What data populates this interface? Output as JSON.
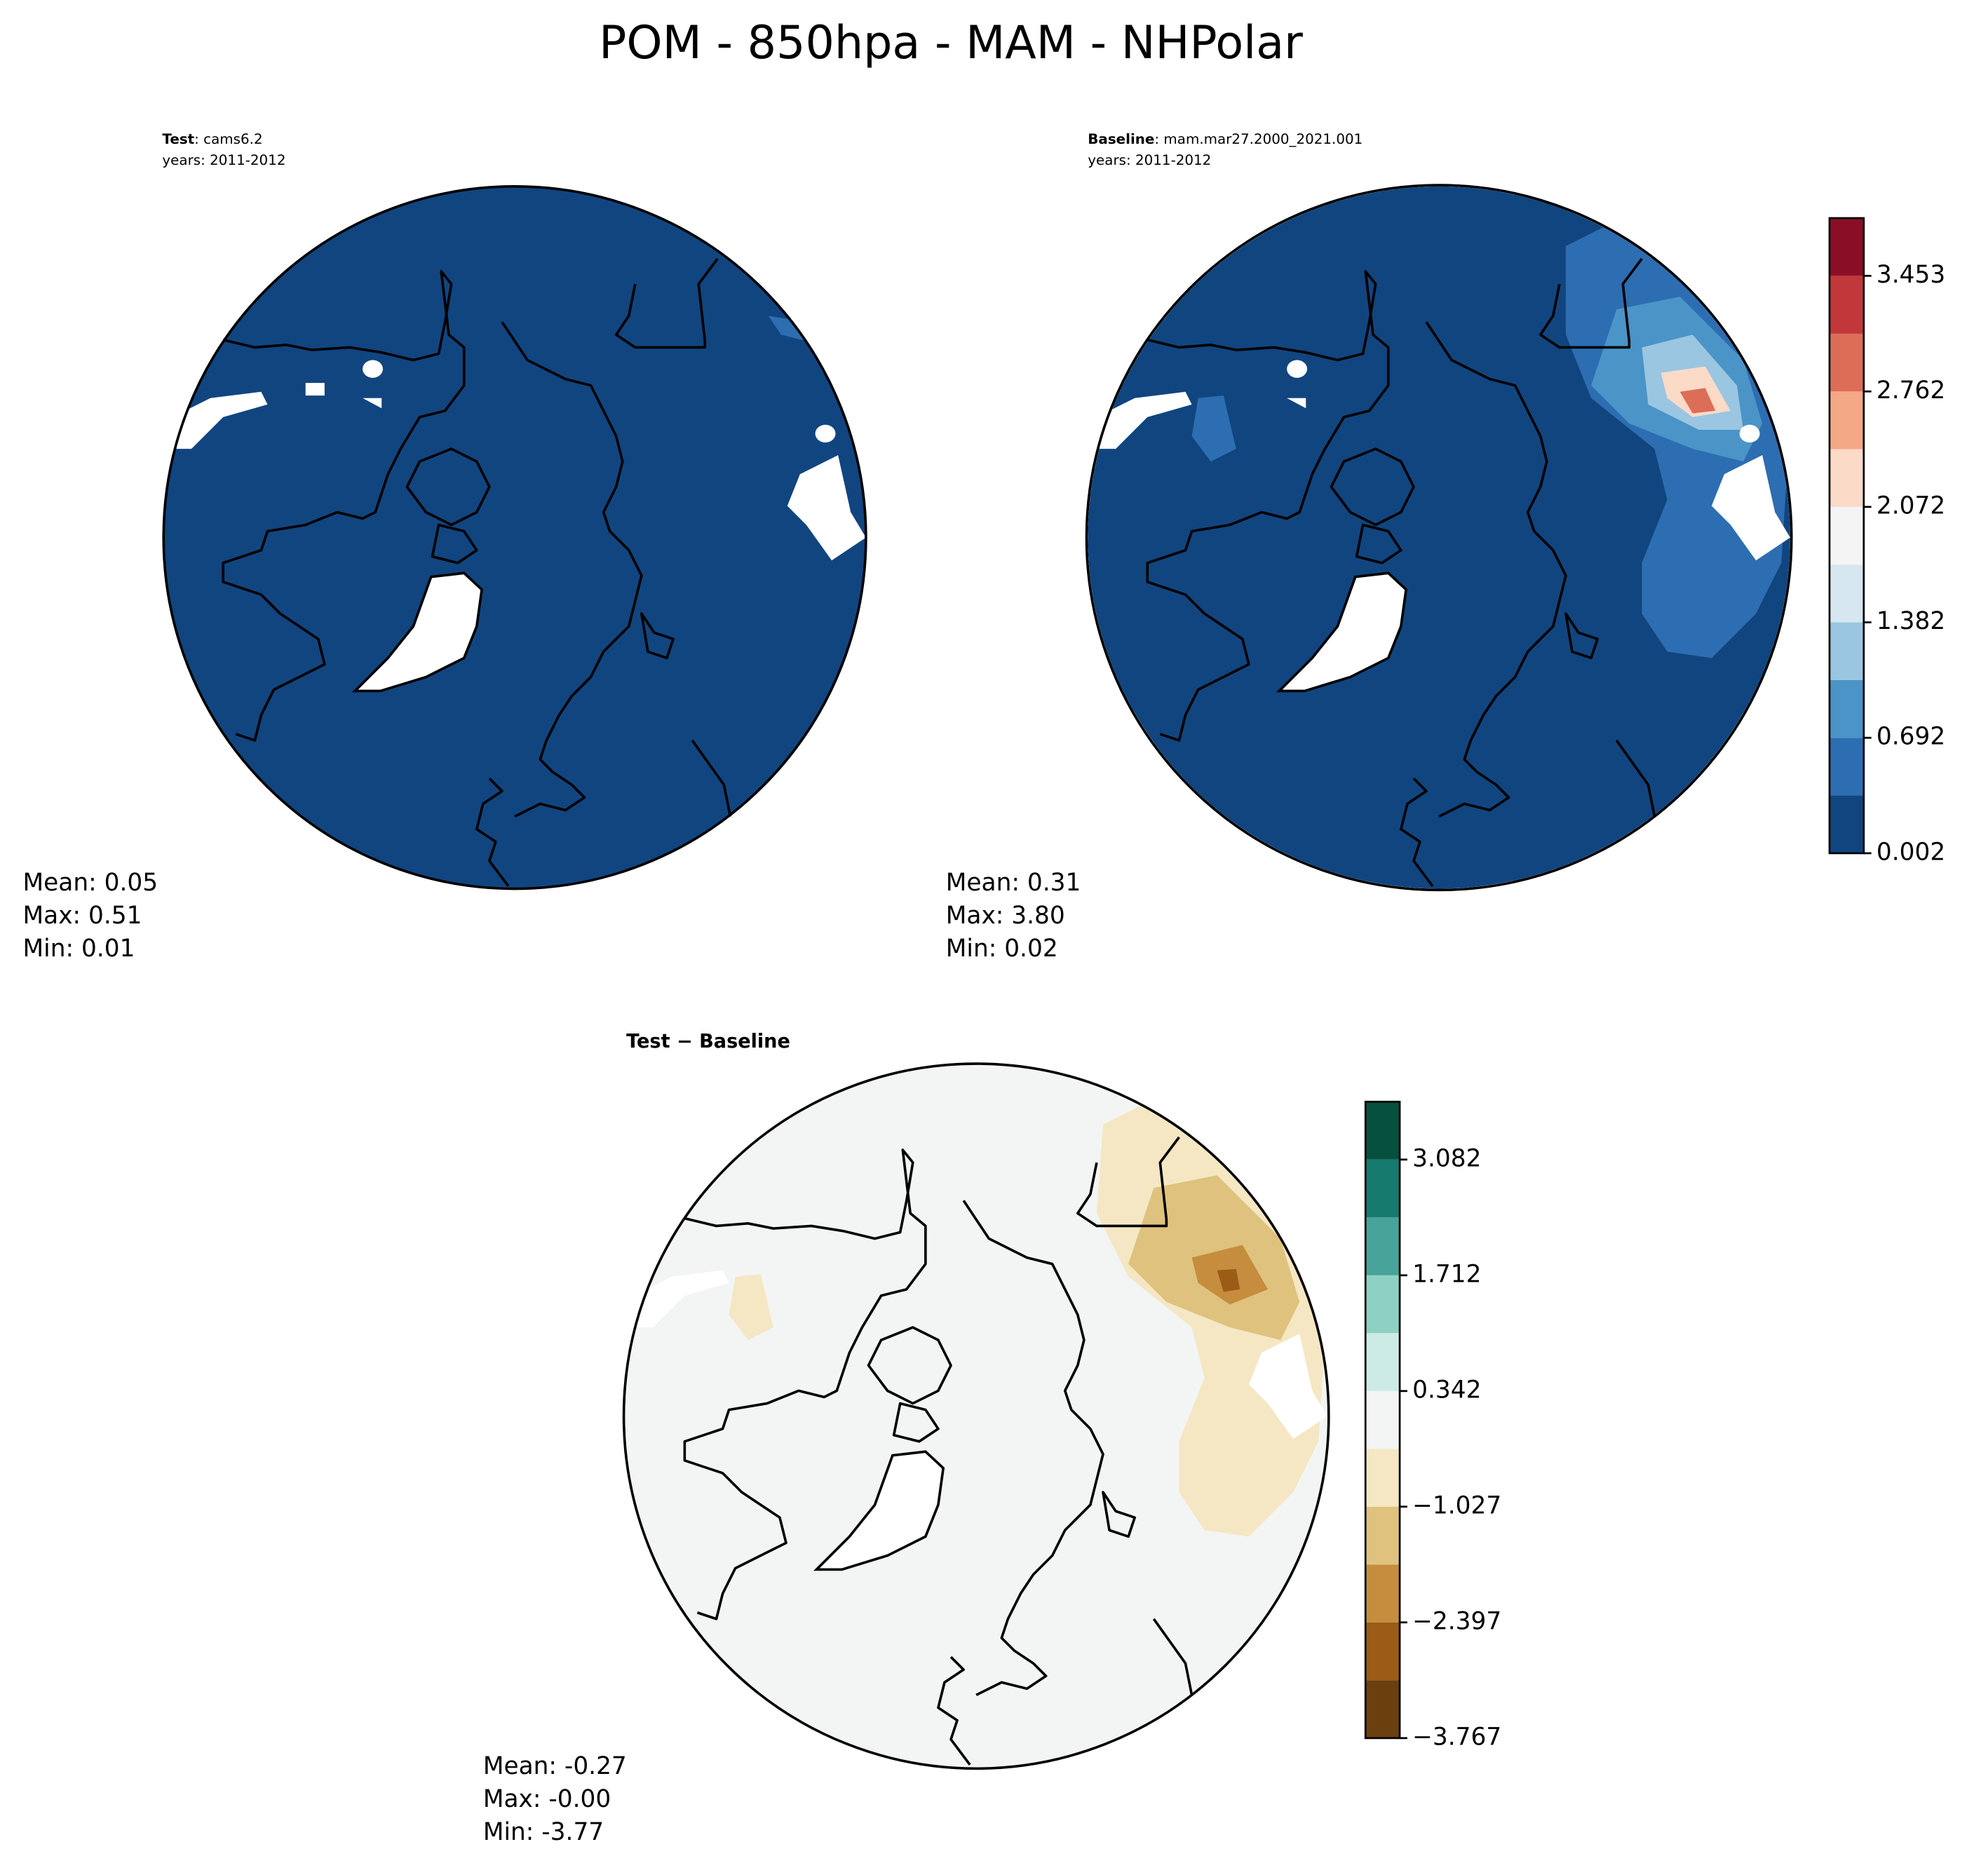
{
  "title": "POM - 850hpa - MAM - NHPolar",
  "panels": [
    {
      "label": "Test",
      "text": ": cams6.2",
      "years": "years: 2011-2012",
      "stats": [
        "Mean:  0.05",
        "Max:  0.51",
        "Min:  0.01"
      ]
    },
    {
      "label": "Baseline",
      "text": ": mam.mar27.2000_2021.001",
      "years": "years: 2011-2012",
      "stats": [
        "Mean:  0.31",
        "Max:  3.80",
        "Min:  0.02"
      ]
    },
    {
      "label": "Test − Baseline",
      "stats": [
        "Mean: -0.27",
        "Max: -0.00",
        "Min: -3.77"
      ]
    }
  ],
  "colorbars": [
    {
      "levels": [
        0.002,
        0.347,
        0.692,
        1.037,
        1.382,
        1.727,
        2.072,
        2.417,
        2.762,
        3.107,
        3.453,
        3.798
      ],
      "colors": [
        "#11457f",
        "#2d6db1",
        "#4b94c8",
        "#9ac6e1",
        "#d6e7f1",
        "#f4f4f4",
        "#fbdac8",
        "#f4a886",
        "#dc6e57",
        "#c2373a",
        "#8a0f26"
      ],
      "ticks": [
        0.002,
        0.692,
        1.382,
        2.072,
        2.762,
        3.453
      ]
    },
    {
      "levels": [
        -3.767,
        -3.082,
        -2.397,
        -1.712,
        -1.027,
        -0.342,
        0.342,
        1.027,
        1.712,
        2.397,
        3.082,
        3.767
      ],
      "colors": [
        "#6b3f0e",
        "#9a5c17",
        "#c58d3d",
        "#dfc27d",
        "#f5e7c3",
        "#f3f5f4",
        "#cdebe5",
        "#8dd1c4",
        "#48a39a",
        "#177a6e",
        "#06503f"
      ],
      "ticks": [
        {
          "value": -3.767,
          "label": "−3.767"
        },
        {
          "value": -2.397,
          "label": "−2.397"
        },
        {
          "value": -1.027,
          "label": "−1.027"
        },
        0.342,
        1.712,
        3.082
      ]
    }
  ]
}
